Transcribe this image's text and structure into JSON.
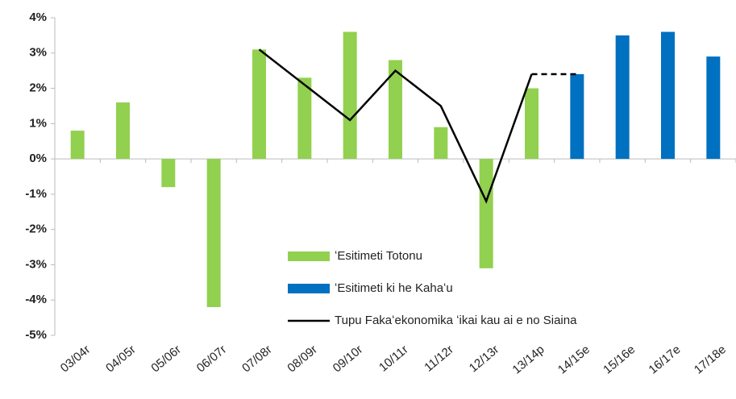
{
  "chart_data": {
    "type": "bar",
    "categories": [
      "03/04r",
      "04/05r",
      "05/06r",
      "06/07r",
      "07/08r",
      "08/09r",
      "09/10r",
      "10/11r",
      "11/12r",
      "12/13r",
      "13/14p",
      "14/15e",
      "15/16e",
      "16/17e",
      "17/18e"
    ],
    "series": [
      {
        "name": "ʻEsitimeti Totonu",
        "type": "bar",
        "color": "#92d050",
        "values": [
          0.8,
          1.6,
          -0.8,
          -4.2,
          3.1,
          2.3,
          3.6,
          2.8,
          0.9,
          -3.1,
          2.0,
          null,
          null,
          null,
          null
        ]
      },
      {
        "name": "ʻEsitimeti ki he Kahaʻu",
        "type": "bar",
        "color": "#0070c0",
        "values": [
          null,
          null,
          null,
          null,
          null,
          null,
          null,
          null,
          null,
          null,
          null,
          2.4,
          3.5,
          3.6,
          2.9
        ]
      },
      {
        "name": "Tupu Fakaʻekonomika ʻikai kau ai e no Siaina",
        "type": "line",
        "color": "#000000",
        "dashed_from": "13/14p",
        "values": [
          null,
          null,
          null,
          null,
          3.1,
          2.1,
          1.1,
          2.5,
          1.5,
          -1.2,
          2.4,
          2.4,
          null,
          null,
          null
        ]
      }
    ],
    "ylim": [
      -5,
      4
    ],
    "yticks": [
      {
        "value": 4,
        "label": "4%"
      },
      {
        "value": 3,
        "label": "3%"
      },
      {
        "value": 2,
        "label": "2%"
      },
      {
        "value": 1,
        "label": "1%"
      },
      {
        "value": 0,
        "label": "0%"
      },
      {
        "value": -1,
        "label": "-1%"
      },
      {
        "value": -2,
        "label": "-2%"
      },
      {
        "value": -3,
        "label": "-3%"
      },
      {
        "value": -4,
        "label": "-4%"
      },
      {
        "value": -5,
        "label": "-5%"
      }
    ],
    "grid": false
  }
}
